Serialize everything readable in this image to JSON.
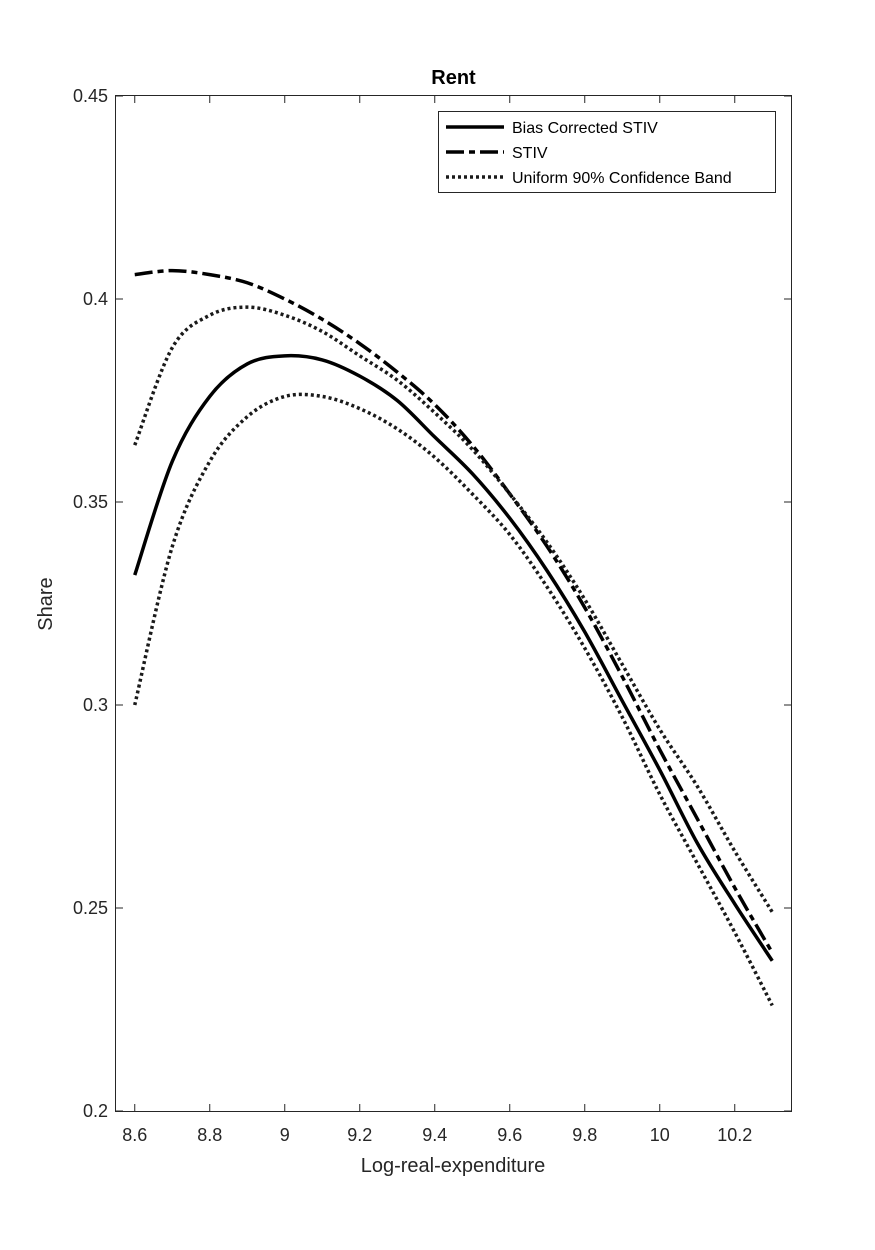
{
  "chart_data": {
    "type": "line",
    "title": "Rent",
    "xlabel": "Log-real-expenditure",
    "ylabel": "Share",
    "xlim": [
      8.55,
      10.35
    ],
    "ylim": [
      0.2,
      0.45
    ],
    "xticks": [
      "8.6",
      "8.8",
      "9",
      "9.2",
      "9.4",
      "9.6",
      "9.8",
      "10",
      "10.2"
    ],
    "xtick_values": [
      8.6,
      8.8,
      9.0,
      9.2,
      9.4,
      9.6,
      9.8,
      10.0,
      10.2
    ],
    "yticks": [
      "0.2",
      "0.25",
      "0.3",
      "0.35",
      "0.4",
      "0.45"
    ],
    "ytick_values": [
      0.2,
      0.25,
      0.3,
      0.35,
      0.4,
      0.45
    ],
    "grid": false,
    "legend_position": "top-right",
    "x": [
      8.6,
      8.7,
      8.8,
      8.9,
      9.0,
      9.1,
      9.2,
      9.3,
      9.4,
      9.5,
      9.6,
      9.7,
      9.8,
      9.9,
      10.0,
      10.1,
      10.2,
      10.3
    ],
    "series": [
      {
        "name": "Bias Corrected STIV",
        "style": "solid",
        "color": "#000000",
        "values": [
          0.332,
          0.36,
          0.376,
          0.384,
          0.386,
          0.385,
          0.381,
          0.375,
          0.366,
          0.357,
          0.346,
          0.333,
          0.318,
          0.301,
          0.284,
          0.266,
          0.251,
          0.237
        ]
      },
      {
        "name": "STIV",
        "style": "dashdot",
        "color": "#000000",
        "values": [
          0.406,
          0.407,
          0.406,
          0.404,
          0.4,
          0.395,
          0.389,
          0.382,
          0.374,
          0.364,
          0.352,
          0.339,
          0.324,
          0.307,
          0.289,
          0.272,
          0.255,
          0.239
        ]
      },
      {
        "name": "Uniform 90% Confidence Band",
        "style": "dotted",
        "color": "#1a1a1a",
        "values": [
          0.364,
          0.388,
          0.396,
          0.398,
          0.396,
          0.392,
          0.386,
          0.38,
          0.372,
          0.363,
          0.352,
          0.34,
          0.326,
          0.31,
          0.294,
          0.28,
          0.264,
          0.249
        ]
      },
      {
        "name": "",
        "style": "dotted",
        "color": "#1a1a1a",
        "values": [
          0.3,
          0.339,
          0.36,
          0.371,
          0.376,
          0.376,
          0.373,
          0.368,
          0.361,
          0.352,
          0.342,
          0.329,
          0.314,
          0.297,
          0.278,
          0.261,
          0.244,
          0.226
        ]
      }
    ]
  }
}
